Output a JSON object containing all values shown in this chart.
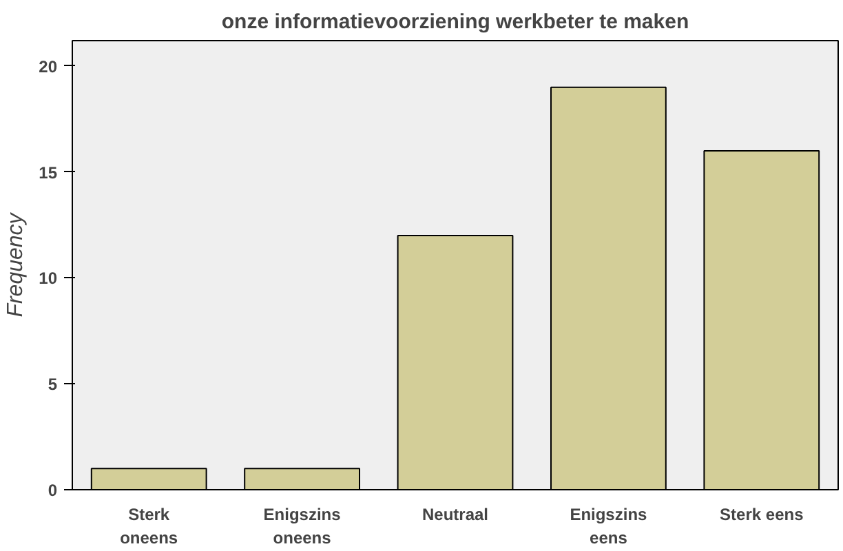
{
  "chart_data": {
    "type": "bar",
    "title": "onze informatievoorziening werkbeter te maken",
    "ylabel": "Frequency",
    "categories": [
      "Sterk\noneens",
      "Enigszins\noneens",
      "Neutraal",
      "Enigszins\neens",
      "Sterk eens"
    ],
    "values": [
      1,
      1,
      12,
      19,
      16
    ],
    "color": "#d3ce98",
    "ylim": [
      0,
      21.2
    ],
    "yticks": [
      0,
      5,
      10,
      15,
      20
    ],
    "grid": false
  }
}
